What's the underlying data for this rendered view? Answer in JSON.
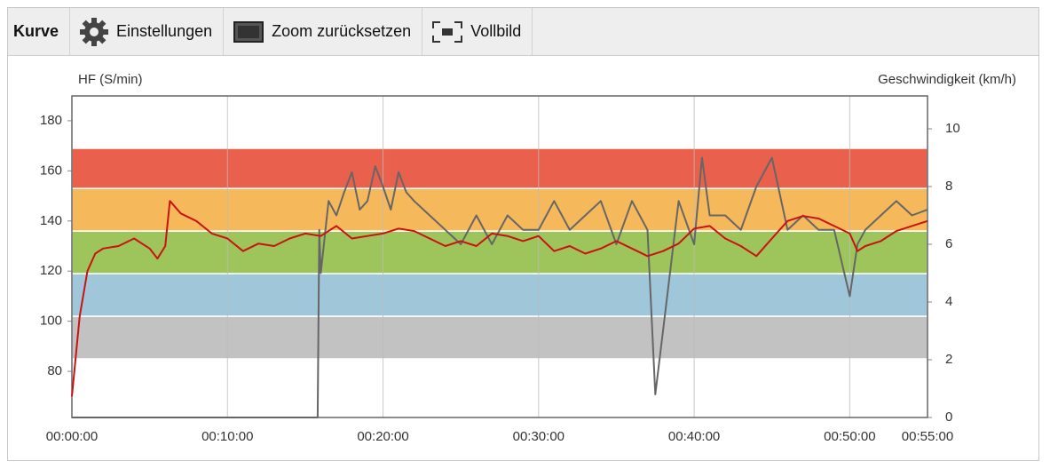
{
  "toolbar": {
    "title": "Kurve",
    "buttons": [
      "Einstellungen",
      "Zoom zurücksetzen",
      "Vollbild"
    ]
  },
  "chart_data": {
    "type": "line",
    "y_label": "HF (S/min)",
    "y2_label": "Geschwindigkeit (km/h)",
    "xlim": [
      0,
      55
    ],
    "xticks": [
      {
        "value": 0,
        "label": "00:00:00"
      },
      {
        "value": 10,
        "label": "00:10:00"
      },
      {
        "value": 20,
        "label": "00:20:00"
      },
      {
        "value": 30,
        "label": "00:30:00"
      },
      {
        "value": 40,
        "label": "00:40:00"
      },
      {
        "value": 50,
        "label": "00:50:00"
      },
      {
        "value": 55,
        "label": "00:55:00"
      }
    ],
    "ylim": [
      61.6,
      189.9
    ],
    "yticks": [
      80,
      100,
      120,
      140,
      160,
      180
    ],
    "y2lim": [
      0,
      11.14
    ],
    "y2ticks": [
      0,
      2,
      4,
      6,
      8,
      10
    ],
    "grid": true,
    "zones": [
      {
        "from": 85,
        "to": 102,
        "color": "#c2c2c2"
      },
      {
        "from": 102,
        "to": 119,
        "color": "#a0c6d9"
      },
      {
        "from": 119,
        "to": 136,
        "color": "#9dc55b"
      },
      {
        "from": 136,
        "to": 153,
        "color": "#f5b95c"
      },
      {
        "from": 153,
        "to": 169,
        "color": "#e9604d"
      }
    ],
    "series": [
      {
        "color": "#cc1111",
        "x": [
          0,
          0.5,
          1,
          1.5,
          2,
          3,
          4,
          5,
          5.5,
          6,
          6.3,
          7,
          8,
          9,
          10,
          11,
          12,
          13,
          14,
          15,
          16,
          17,
          18,
          19,
          20,
          21,
          22,
          23,
          24,
          25,
          26,
          27,
          28,
          29,
          30,
          31,
          32,
          33,
          34,
          35,
          36,
          37,
          38,
          39,
          40,
          41,
          42,
          43,
          44,
          45,
          46,
          47,
          48,
          49,
          50,
          50.5,
          51,
          52,
          53,
          54,
          55
        ],
        "values": [
          70,
          102,
          120,
          127,
          129,
          130,
          133,
          129,
          125,
          130,
          148,
          143,
          140,
          135,
          133,
          128,
          131,
          130,
          133,
          135,
          134,
          138,
          133,
          134,
          135,
          137,
          136,
          133,
          130,
          132,
          130,
          135,
          134,
          132,
          134,
          128,
          130,
          127,
          129,
          132,
          129,
          126,
          128,
          131,
          137,
          138,
          133,
          130,
          126,
          133,
          140,
          142,
          141,
          138,
          135,
          128,
          130,
          132,
          136,
          138,
          140
        ]
      },
      {
        "color": "#666666",
        "axis": "y2",
        "x": [
          0,
          15.8,
          15.9,
          16,
          16.5,
          17,
          17.5,
          18,
          18.5,
          19,
          19.5,
          20,
          20.5,
          21,
          21.5,
          22,
          23,
          24,
          25,
          26,
          27,
          28,
          29,
          30,
          31,
          32,
          33,
          34,
          35,
          36,
          37,
          37.5,
          38,
          39,
          40,
          40.5,
          41,
          42,
          43,
          44,
          45,
          46,
          47,
          48,
          49,
          50,
          50.5,
          51,
          52,
          53,
          54,
          55
        ],
        "values": [
          0,
          0,
          6.5,
          5,
          7.5,
          7,
          7.8,
          8.5,
          7.2,
          7.5,
          8.7,
          8,
          7.2,
          8.5,
          7.8,
          7.5,
          7,
          6.5,
          6,
          7,
          6,
          7,
          6.5,
          6.5,
          7.5,
          6.5,
          7,
          7.5,
          6,
          7.5,
          6.5,
          0.8,
          3,
          7.5,
          6,
          9,
          7,
          7,
          6.5,
          8,
          9,
          6.5,
          7,
          6.5,
          6.5,
          4.2,
          6,
          6.5,
          7,
          7.5,
          7,
          7.2
        ]
      }
    ]
  }
}
